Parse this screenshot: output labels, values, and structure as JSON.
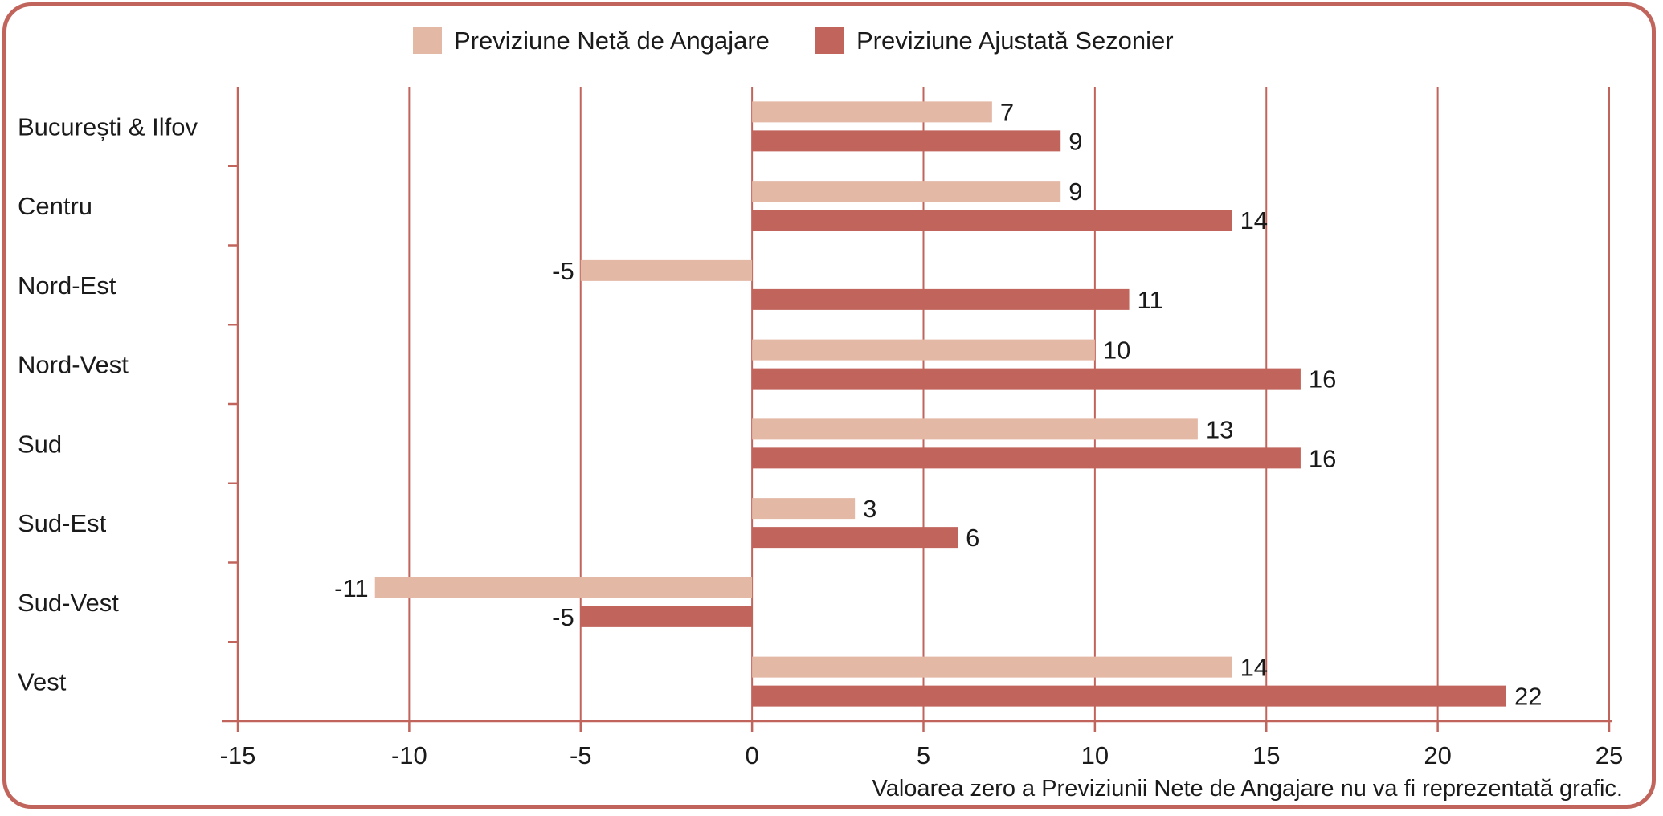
{
  "chart_data": {
    "type": "bar",
    "orientation": "horizontal",
    "categories": [
      "București & Ilfov",
      "Centru",
      "Nord-Est",
      "Nord-Vest",
      "Sud",
      "Sud-Est",
      "Sud-Vest",
      "Vest"
    ],
    "series": [
      {
        "name": "Previziune Netă de Angajare",
        "color": "#e3b8a5",
        "values": [
          7,
          9,
          -5,
          10,
          13,
          3,
          -11,
          14
        ]
      },
      {
        "name": "Previziune Ajustată Sezonier",
        "color": "#c1655c",
        "values": [
          9,
          14,
          11,
          16,
          16,
          6,
          -5,
          22
        ]
      }
    ],
    "xlim": [
      -15,
      25
    ],
    "xticks": [
      -15,
      -10,
      -5,
      0,
      5,
      10,
      15,
      20,
      25
    ],
    "grid": true,
    "grid_color": "#c1655c",
    "legend": "top-center",
    "note": "Valoarea zero a Previziunii Nete de Angajare nu va fi reprezentată grafic."
  }
}
